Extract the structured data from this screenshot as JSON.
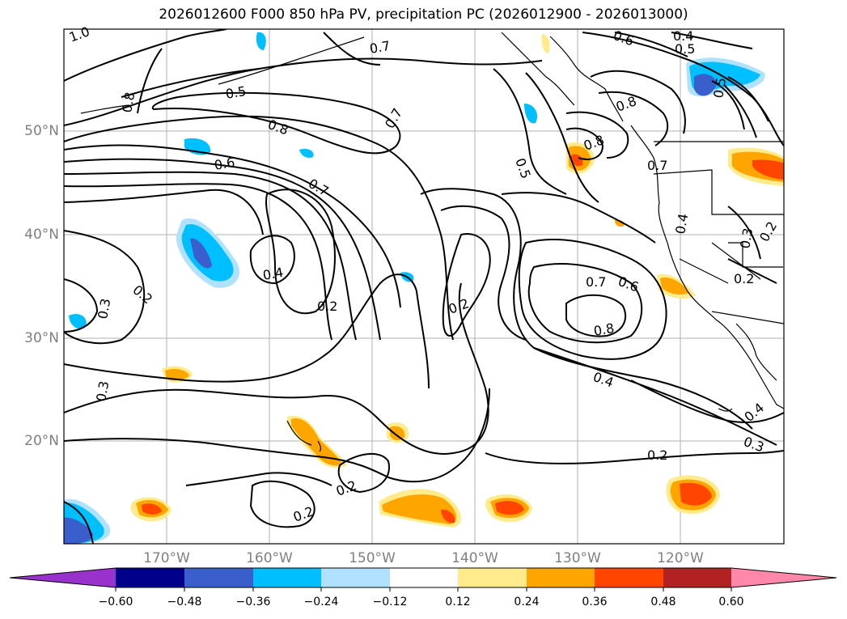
{
  "title": "2026012600 F000 850 hPa PV, precipitation PC (2026012900 - 2026013000)",
  "map": {
    "latitude_labels": [
      "50°N",
      "40°N",
      "30°N",
      "20°N"
    ],
    "longitude_labels": [
      "170°W",
      "160°W",
      "150°W",
      "140°W",
      "130°W",
      "120°W"
    ],
    "contour_labels": [
      "1.0",
      "0.8",
      "0.5",
      "0.7",
      "0.6",
      "0.4",
      "0.5",
      "0.7",
      "0.8",
      "0.5",
      "0.8",
      "0.6",
      "0.7",
      "0.8",
      "0.7",
      "0.5",
      "0.4",
      "0.2",
      "0.3",
      "0.2",
      "0.2",
      "0.7",
      "0.6",
      "0.8",
      "0.4",
      "0.3",
      "0.3",
      "0.2",
      "0.2",
      "0.2",
      "0.4",
      "0.3",
      "0.4",
      "0.2",
      "0.2"
    ],
    "contour_color": "#000000",
    "grid_color": "#b0b0b0",
    "coastline_color": "#000000"
  },
  "colorbar": {
    "tick_labels": [
      "−0.60",
      "−0.48",
      "−0.36",
      "−0.24",
      "−0.12",
      "0.12",
      "0.24",
      "0.36",
      "0.48",
      "0.60"
    ],
    "colors": [
      "#9932cc",
      "#00008b",
      "#3a5fcd",
      "#00bfff",
      "#b0e2ff",
      "#ffffff",
      "#ffeb8c",
      "#ffa500",
      "#ff4500",
      "#b22222",
      "#ff88aa"
    ]
  }
}
